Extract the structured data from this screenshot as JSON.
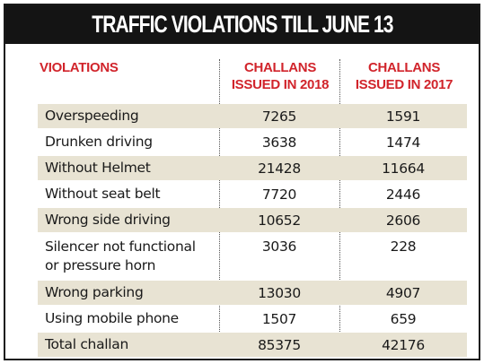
{
  "title": "TRAFFIC VIOLATIONS TILL JUNE 13",
  "headers": {
    "violations": "VIOLATIONS",
    "col2018_line1": "CHALLANS",
    "col2018_line2": "ISSUED IN 2018",
    "col2017_line1": "CHALLANS",
    "col2017_line2": "ISSUED IN 2017"
  },
  "colors": {
    "banner_bg": "#141414",
    "header_text": "#d1242b",
    "row_shade": "#e8e3d3"
  },
  "rows": [
    {
      "name": "Overspeeding",
      "v2018": "7265",
      "v2017": "1591"
    },
    {
      "name": "Drunken driving",
      "v2018": "3638",
      "v2017": "1474"
    },
    {
      "name": "Without Helmet",
      "v2018": "21428",
      "v2017": "11664"
    },
    {
      "name": "Without seat belt",
      "v2018": "7720",
      "v2017": "2446"
    },
    {
      "name": "Wrong side driving",
      "v2018": "10652",
      "v2017": "2606"
    },
    {
      "name_line1": "Silencer not functional",
      "name_line2": "or pressure horn",
      "v2018": "3036",
      "v2017": "228"
    },
    {
      "name": "Wrong parking",
      "v2018": "13030",
      "v2017": "4907"
    },
    {
      "name": "Using mobile phone",
      "v2018": "1507",
      "v2017": "659"
    },
    {
      "name": "Total challan",
      "v2018": "85375",
      "v2017": "42176"
    }
  ]
}
